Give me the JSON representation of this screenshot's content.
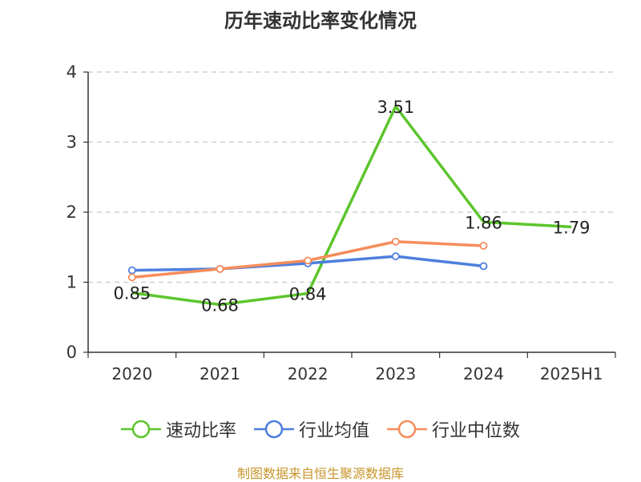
{
  "source_note": "制图数据来自恒生聚源数据库",
  "chart_data": {
    "type": "line",
    "title": "历年速动比率变化情况",
    "xlabel": "",
    "ylabel": "",
    "categories": [
      "2020",
      "2021",
      "2022",
      "2023",
      "2024",
      "2025H1"
    ],
    "ylim": [
      0,
      4
    ],
    "yticks": [
      0,
      1,
      2,
      3,
      4
    ],
    "grid": true,
    "legend_position": "bottom",
    "series": [
      {
        "name": "速动比率",
        "color": "#5cc52d",
        "values": [
          0.85,
          0.68,
          0.84,
          3.51,
          1.86,
          1.79
        ],
        "show_labels": true,
        "markers": false
      },
      {
        "name": "行业均值",
        "color": "#4e7fdd",
        "values": [
          1.17,
          1.19,
          1.27,
          1.37,
          1.23,
          null
        ],
        "show_labels": false,
        "markers": true
      },
      {
        "name": "行业中位数",
        "color": "#f58d5b",
        "values": [
          1.07,
          1.19,
          1.31,
          1.58,
          1.52,
          null
        ],
        "show_labels": false,
        "markers": true
      }
    ]
  }
}
